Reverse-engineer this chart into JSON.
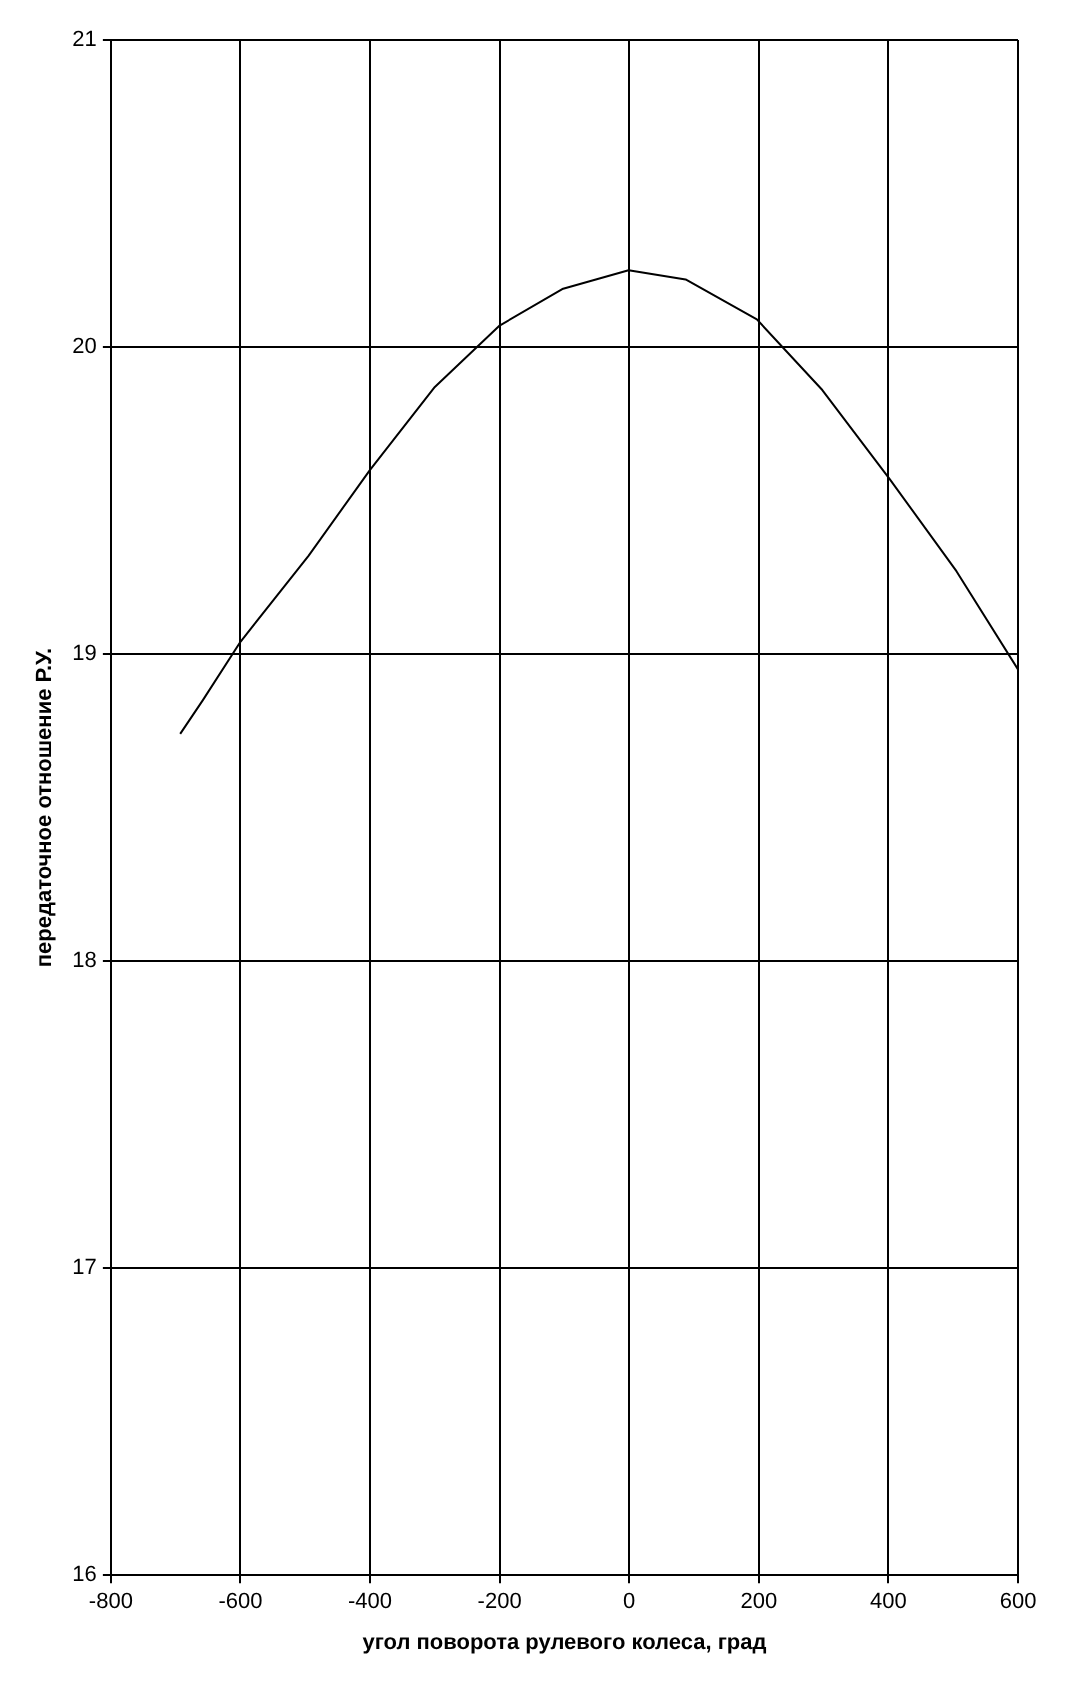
{
  "chart_data": {
    "type": "line",
    "xlabel": "угол поворота рулевого колеса, град",
    "ylabel": "передаточное отношение Р.У.",
    "x": [
      -693,
      -658,
      -600,
      -495,
      -400,
      -300,
      -200,
      -102,
      -1,
      87,
      197,
      298,
      402,
      505,
      600
    ],
    "series": [
      {
        "color": "#000000",
        "values": [
          18.74,
          18.85,
          19.04,
          19.32,
          19.6,
          19.87,
          20.07,
          20.19,
          20.25,
          20.22,
          20.09,
          19.86,
          19.57,
          19.27,
          18.95
        ]
      }
    ],
    "xlim": [
      -800,
      600
    ],
    "xticks": [
      -800,
      -600,
      -400,
      -200,
      0,
      200,
      400,
      600
    ],
    "ylim": [
      16,
      21
    ],
    "yticks": [
      16,
      17,
      18,
      19,
      20,
      21
    ],
    "grid": true,
    "legend": false,
    "marker": "none",
    "line_style": "solid"
  }
}
